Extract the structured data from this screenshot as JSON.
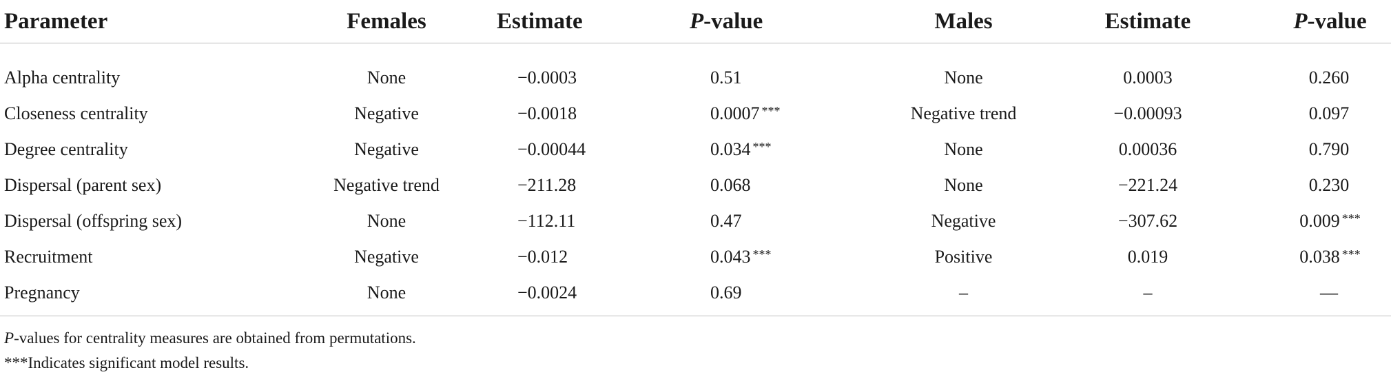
{
  "table": {
    "headers": {
      "parameter": "Parameter",
      "females": "Females",
      "estimate_f": "Estimate",
      "pvalue_f_italic": "P",
      "pvalue_f_rest": "-value",
      "males": "Males",
      "estimate_m": "Estimate",
      "pvalue_m_italic": "P",
      "pvalue_m_rest": "-value"
    },
    "rows": [
      {
        "parameter": "Alpha centrality",
        "females": "None",
        "estimate_f": "−0.0003",
        "pvalue_f": "0.51",
        "stars_f": "",
        "males": "None",
        "estimate_m": "0.0003",
        "pvalue_m": "0.260",
        "stars_m": ""
      },
      {
        "parameter": "Closeness centrality",
        "females": "Negative",
        "estimate_f": "−0.0018",
        "pvalue_f": "0.0007",
        "stars_f": "***",
        "males": "Negative trend",
        "estimate_m": "−0.00093",
        "pvalue_m": "0.097",
        "stars_m": ""
      },
      {
        "parameter": "Degree centrality",
        "females": "Negative",
        "estimate_f": "−0.00044",
        "pvalue_f": "0.034",
        "stars_f": "***",
        "males": "None",
        "estimate_m": "0.00036",
        "pvalue_m": "0.790",
        "stars_m": ""
      },
      {
        "parameter": "Dispersal (parent sex)",
        "females": "Negative trend",
        "estimate_f": "−211.28",
        "pvalue_f": "0.068",
        "stars_f": "",
        "males": "None",
        "estimate_m": "−221.24",
        "pvalue_m": "0.230",
        "stars_m": ""
      },
      {
        "parameter": "Dispersal (offspring sex)",
        "females": "None",
        "estimate_f": "−112.11",
        "pvalue_f": "0.47",
        "stars_f": "",
        "males": "Negative",
        "estimate_m": "−307.62",
        "pvalue_m": "0.009",
        "stars_m": "***"
      },
      {
        "parameter": "Recruitment",
        "females": "Negative",
        "estimate_f": "−0.012",
        "pvalue_f": "0.043",
        "stars_f": "***",
        "males": "Positive",
        "estimate_m": "0.019",
        "pvalue_m": "0.038",
        "stars_m": "***"
      },
      {
        "parameter": "Pregnancy",
        "females": "None",
        "estimate_f": "−0.0024",
        "pvalue_f": "0.69",
        "stars_f": "",
        "males": "–",
        "estimate_m": "–",
        "pvalue_m": "—",
        "stars_m": ""
      }
    ]
  },
  "footnotes": {
    "note1_italic": "P",
    "note1_rest": "-values for centrality measures are obtained from permutations.",
    "note2": "***Indicates significant model results."
  }
}
